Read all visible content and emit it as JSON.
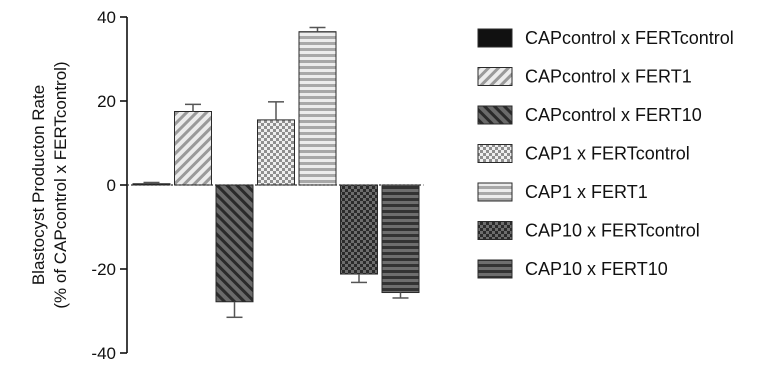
{
  "chart_data": {
    "type": "bar",
    "ylabel_line1": "Blastocyst Producton Rate",
    "ylabel_line2": "(% of CAPcontrol x FERTcontrol)",
    "ylim": [
      -40,
      40
    ],
    "yticks": [
      40,
      20,
      0,
      -20,
      -40
    ],
    "grid": false,
    "legend_position": "right",
    "error_bar_color": "#555555",
    "zero_line_color": "#333333",
    "series": [
      {
        "name": "CAPcontrol x FERTcontrol",
        "value": 0.3,
        "error": 0.3,
        "pattern": "solid-black",
        "color": "#111111"
      },
      {
        "name": "CAPcontrol x FERT1",
        "value": 17.5,
        "error": 1.7,
        "pattern": "diag-up-light",
        "color": "#bdbdbd"
      },
      {
        "name": "CAPcontrol x FERT10",
        "value": -27.8,
        "error": 3.7,
        "pattern": "diag-down-dark",
        "color": "#3f3f3f"
      },
      {
        "name": "CAP1 x FERTcontrol",
        "value": 15.5,
        "error": 4.3,
        "pattern": "check-light",
        "color": "#b8b8b8"
      },
      {
        "name": "CAP1 x FERT1",
        "value": 36.5,
        "error": 1.0,
        "pattern": "horiz-light",
        "color": "#c4c4c4"
      },
      {
        "name": "CAP10 x FERTcontrol",
        "value": -21.2,
        "error": 2.0,
        "pattern": "check-dark",
        "color": "#3a3a3a"
      },
      {
        "name": "CAP10 x FERT10",
        "value": -25.6,
        "error": 1.3,
        "pattern": "horiz-dark",
        "color": "#444444"
      }
    ]
  }
}
